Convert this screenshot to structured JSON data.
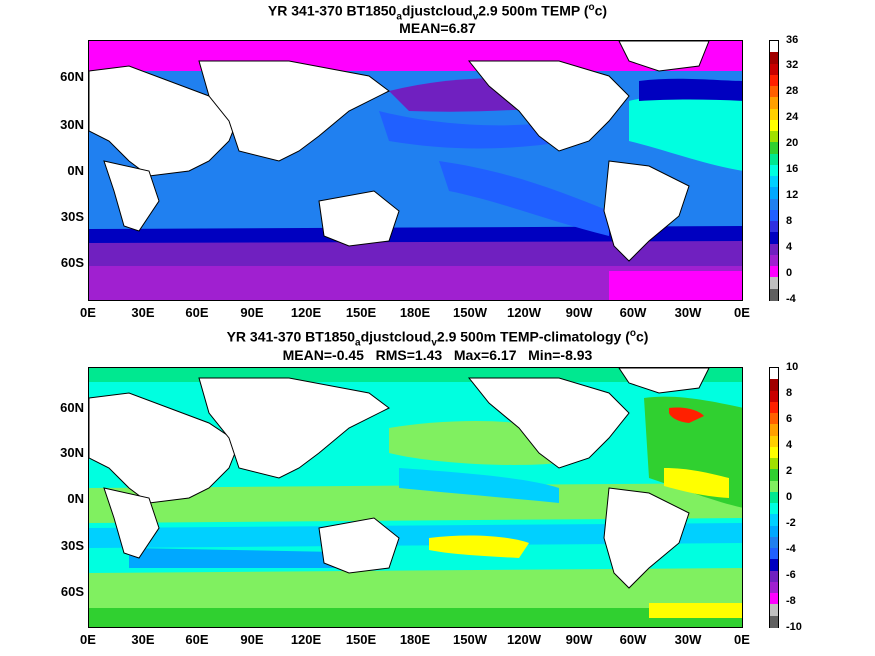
{
  "top_panel": {
    "title_pre": "YR 341-370 BT1850",
    "title_sub1": "a",
    "title_mid": "djustcloud",
    "title_sub2": "v",
    "title_post": "2.9 500m TEMP (",
    "title_sup": "o",
    "title_end": "c)",
    "stats": "MEAN=6.87",
    "lat_labels": [
      "60N",
      "30N",
      "0N",
      "30S",
      "60S"
    ],
    "lon_labels": [
      "0E",
      "30E",
      "60E",
      "90E",
      "120E",
      "150E",
      "180E",
      "150W",
      "120W",
      "90W",
      "60W",
      "30W",
      "0E"
    ],
    "colorbar_labels": [
      "36",
      "32",
      "28",
      "24",
      "20",
      "16",
      "12",
      "8",
      "4",
      "0",
      "-4"
    ],
    "colorbar_colors": [
      "#ffffff",
      "#a00000",
      "#c80000",
      "#ff2000",
      "#ff6000",
      "#ffa000",
      "#ffd000",
      "#ffff00",
      "#a0e000",
      "#30d030",
      "#00e890",
      "#00ffe0",
      "#00d0ff",
      "#00a8ff",
      "#2080f0",
      "#2060ff",
      "#3030e0",
      "#0000c0",
      "#7020c0",
      "#a020d0",
      "#ff00ff",
      "#c0c0c0",
      "#606060"
    ]
  },
  "bottom_panel": {
    "title_pre": "YR 341-370 BT1850",
    "title_sub1": "a",
    "title_mid": "djustcloud",
    "title_sub2": "v",
    "title_post": "2.9 500m TEMP-climatology (",
    "title_sup": "o",
    "title_end": "c)",
    "stats": "MEAN=-0.45   RMS=1.43   Max=6.17   Min=-8.93",
    "lat_labels": [
      "60N",
      "30N",
      "0N",
      "30S",
      "60S"
    ],
    "lon_labels": [
      "0E",
      "30E",
      "60E",
      "90E",
      "120E",
      "150E",
      "180E",
      "150W",
      "120W",
      "90W",
      "60W",
      "30W",
      "0E"
    ],
    "colorbar_labels": [
      "10",
      "8",
      "6",
      "4",
      "2",
      "0",
      "-2",
      "-4",
      "-6",
      "-8",
      "-10"
    ],
    "colorbar_colors": [
      "#ffffff",
      "#a00000",
      "#c80000",
      "#ff2000",
      "#ff6000",
      "#ffa000",
      "#ffd000",
      "#ffff00",
      "#a0e000",
      "#30d030",
      "#80f060",
      "#00e890",
      "#00ffe0",
      "#00d0ff",
      "#00a8ff",
      "#2080f0",
      "#2060ff",
      "#0000c0",
      "#7020c0",
      "#a020d0",
      "#ff00ff",
      "#c0c0c0",
      "#606060"
    ]
  }
}
